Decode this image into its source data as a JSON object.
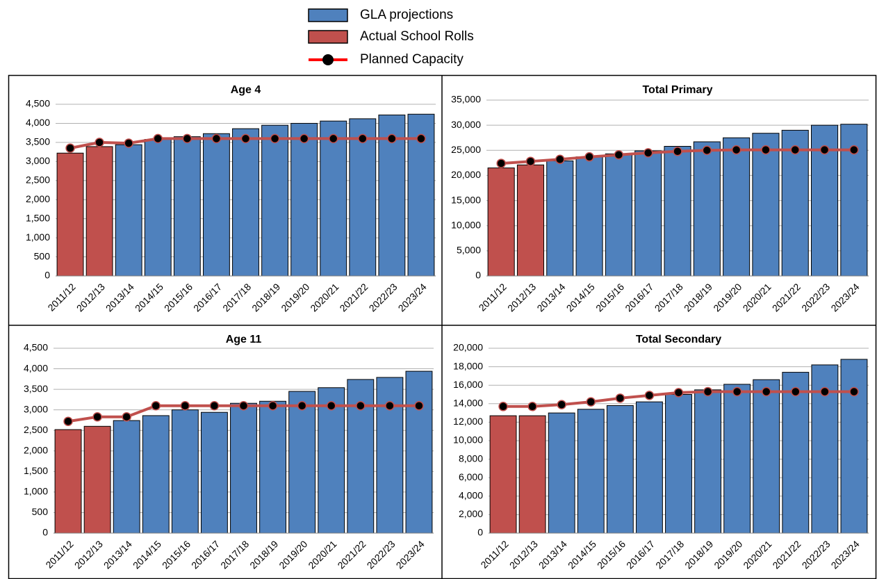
{
  "chart_data": [
    {
      "type": "bar",
      "title": "Age 4",
      "categories": [
        "2011/12",
        "2012/13",
        "2013/14",
        "2014/15",
        "2015/16",
        "2016/17",
        "2017/18",
        "2018/19",
        "2019/20",
        "2020/21",
        "2021/22",
        "2022/23",
        "2023/24"
      ],
      "series": [
        {
          "name": "GLA projections",
          "type": "bar",
          "color": "#4f81bd",
          "values": [
            null,
            null,
            3440,
            3580,
            3650,
            3730,
            3860,
            3950,
            4000,
            4060,
            4120,
            4220,
            4240
          ]
        },
        {
          "name": "Actual School Rolls",
          "type": "bar",
          "color": "#c0504d",
          "values": [
            3220,
            3390,
            null,
            null,
            null,
            null,
            null,
            null,
            null,
            null,
            null,
            null,
            null
          ]
        },
        {
          "name": "Planned Capacity",
          "type": "line",
          "color": "#c0504d",
          "values": [
            3350,
            3500,
            3480,
            3600,
            3600,
            3600,
            3600,
            3600,
            3600,
            3600,
            3600,
            3600,
            3600
          ]
        }
      ],
      "ylim": [
        0,
        4500
      ],
      "yticks": [
        0,
        500,
        {
          "value": 1000,
          "label": "1,000"
        },
        {
          "value": 1500,
          "label": "1,500"
        },
        {
          "value": 2000,
          "label": "2,000"
        },
        {
          "value": 2500,
          "label": "2,500"
        },
        {
          "value": 3000,
          "label": "3,000"
        },
        {
          "value": 3500,
          "label": "3,500"
        },
        {
          "value": 4000,
          "label": "4,000"
        },
        {
          "value": 4500,
          "label": "4,500"
        }
      ],
      "grid": true
    },
    {
      "type": "bar",
      "title": "Total Primary",
      "categories": [
        "2011/12",
        "2012/13",
        "2013/14",
        "2014/15",
        "2015/16",
        "2016/17",
        "2017/18",
        "2018/19",
        "2019/20",
        "2020/21",
        "2021/22",
        "2022/23",
        "2023/24"
      ],
      "series": [
        {
          "name": "GLA projections",
          "type": "bar",
          "color": "#4f81bd",
          "values": [
            null,
            null,
            22900,
            23700,
            24300,
            24900,
            25800,
            26700,
            27500,
            28400,
            29000,
            30000,
            30200
          ]
        },
        {
          "name": "Actual School Rolls",
          "type": "bar",
          "color": "#c0504d",
          "values": [
            21500,
            22100,
            null,
            null,
            null,
            null,
            null,
            null,
            null,
            null,
            null,
            null,
            null
          ]
        },
        {
          "name": "Planned Capacity",
          "type": "line",
          "color": "#c0504d",
          "values": [
            22400,
            22800,
            23200,
            23700,
            24100,
            24500,
            24800,
            25000,
            25100,
            25100,
            25100,
            25100,
            25100
          ]
        }
      ],
      "ylim": [
        0,
        35000
      ],
      "yticks": [
        0,
        {
          "value": 5000,
          "label": "5,000"
        },
        {
          "value": 10000,
          "label": "10,000"
        },
        {
          "value": 15000,
          "label": "15,000"
        },
        {
          "value": 20000,
          "label": "20,000"
        },
        {
          "value": 25000,
          "label": "25,000"
        },
        {
          "value": 30000,
          "label": "30,000"
        },
        {
          "value": 35000,
          "label": "35,000"
        }
      ],
      "grid": true
    },
    {
      "type": "bar",
      "title": "Age 11",
      "categories": [
        "2011/12",
        "2012/13",
        "2013/14",
        "2014/15",
        "2015/16",
        "2016/17",
        "2017/18",
        "2018/19",
        "2019/20",
        "2020/21",
        "2021/22",
        "2022/23",
        "2023/24"
      ],
      "series": [
        {
          "name": "GLA projections",
          "type": "bar",
          "color": "#4f81bd",
          "values": [
            null,
            null,
            2740,
            2860,
            3000,
            2940,
            3160,
            3210,
            3450,
            3540,
            3740,
            3790,
            3940
          ]
        },
        {
          "name": "Actual School Rolls",
          "type": "bar",
          "color": "#c0504d",
          "values": [
            2520,
            2600,
            null,
            null,
            null,
            null,
            null,
            null,
            null,
            null,
            null,
            null,
            null
          ]
        },
        {
          "name": "Planned Capacity",
          "type": "line",
          "color": "#c0504d",
          "values": [
            2720,
            2830,
            2830,
            3100,
            3100,
            3100,
            3100,
            3100,
            3100,
            3100,
            3100,
            3100,
            3100
          ]
        }
      ],
      "ylim": [
        0,
        4500
      ],
      "yticks": [
        0,
        500,
        {
          "value": 1000,
          "label": "1,000"
        },
        {
          "value": 1500,
          "label": "1,500"
        },
        {
          "value": 2000,
          "label": "2,000"
        },
        {
          "value": 2500,
          "label": "2,500"
        },
        {
          "value": 3000,
          "label": "3,000"
        },
        {
          "value": 3500,
          "label": "3,500"
        },
        {
          "value": 4000,
          "label": "4,000"
        },
        {
          "value": 4500,
          "label": "4,500"
        }
      ],
      "grid": true
    },
    {
      "type": "bar",
      "title": "Total Secondary",
      "categories": [
        "2011/12",
        "2012/13",
        "2013/14",
        "2014/15",
        "2015/16",
        "2016/17",
        "2017/18",
        "2018/19",
        "2019/20",
        "2020/21",
        "2021/22",
        "2022/23",
        "2023/24"
      ],
      "series": [
        {
          "name": "GLA projections",
          "type": "bar",
          "color": "#4f81bd",
          "values": [
            null,
            null,
            13000,
            13400,
            13800,
            14200,
            15000,
            15500,
            16100,
            16600,
            17400,
            18200,
            18800
          ]
        },
        {
          "name": "Actual School Rolls",
          "type": "bar",
          "color": "#c0504d",
          "values": [
            12700,
            12700,
            null,
            null,
            null,
            null,
            null,
            null,
            null,
            null,
            null,
            null,
            null
          ]
        },
        {
          "name": "Planned Capacity",
          "type": "line",
          "color": "#c0504d",
          "values": [
            13700,
            13700,
            13900,
            14200,
            14600,
            14900,
            15200,
            15300,
            15300,
            15300,
            15300,
            15300,
            15300
          ]
        }
      ],
      "ylim": [
        0,
        20000
      ],
      "yticks": [
        0,
        {
          "value": 2000,
          "label": "2,000"
        },
        {
          "value": 4000,
          "label": "4,000"
        },
        {
          "value": 6000,
          "label": "6,000"
        },
        {
          "value": 8000,
          "label": "8,000"
        },
        {
          "value": 10000,
          "label": "10,000"
        },
        {
          "value": 12000,
          "label": "12,000"
        },
        {
          "value": 14000,
          "label": "14,000"
        },
        {
          "value": 16000,
          "label": "16,000"
        },
        {
          "value": 18000,
          "label": "18,000"
        },
        {
          "value": 20000,
          "label": "20,000"
        }
      ],
      "grid": true
    }
  ]
}
